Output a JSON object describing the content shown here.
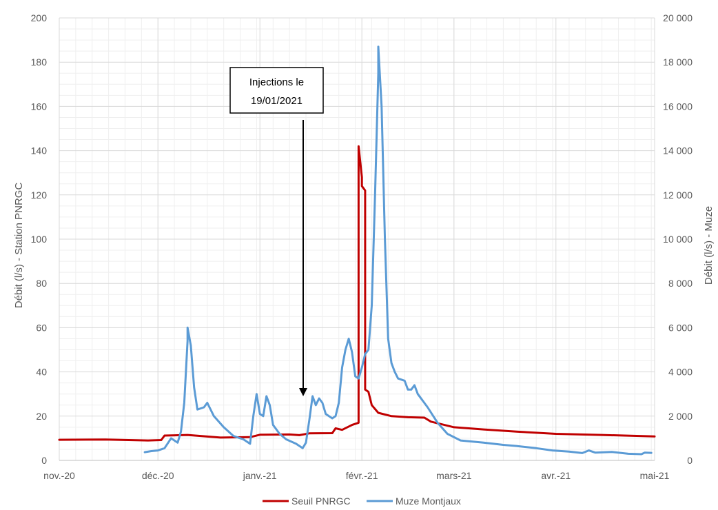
{
  "chart_data": {
    "type": "line",
    "x_ticks": [
      {
        "date": "2020-11-01",
        "label": "nov.-20"
      },
      {
        "date": "2020-12-01",
        "label": "déc.-20"
      },
      {
        "date": "2021-01-01",
        "label": "janv.-21"
      },
      {
        "date": "2021-02-01",
        "label": "févr.-21"
      },
      {
        "date": "2021-03-01",
        "label": "mars-21"
      },
      {
        "date": "2021-04-01",
        "label": "avr.-21"
      },
      {
        "date": "2021-05-01",
        "label": "mai-21"
      }
    ],
    "xlim": [
      "2020-11-01",
      "2021-05-01"
    ],
    "y_left": {
      "label": "Débit (l/s) - Station PNRGC",
      "ylim": [
        0,
        200
      ],
      "ticks": [
        "0",
        "20",
        "40",
        "60",
        "80",
        "100",
        "120",
        "140",
        "160",
        "180",
        "200"
      ]
    },
    "y_right": {
      "label": "Débit (l/s) - Muze",
      "ylim": [
        0,
        20000
      ],
      "ticks": [
        "0",
        "2 000",
        "4 000",
        "6 000",
        "8 000",
        "10 000",
        "12 000",
        "14 000",
        "16 000",
        "18 000",
        "20 000"
      ]
    },
    "grid": true,
    "legend_position": "bottom",
    "series": [
      {
        "name": "Seuil PNRGC",
        "axis": "left",
        "color": "#c00000",
        "points": [
          [
            "2020-11-01",
            9.3
          ],
          [
            "2020-11-15",
            9.4
          ],
          [
            "2020-11-28",
            9.0
          ],
          [
            "2020-12-02",
            9.2
          ],
          [
            "2020-12-03",
            11.2
          ],
          [
            "2020-12-10",
            11.5
          ],
          [
            "2020-12-20",
            10.3
          ],
          [
            "2020-12-29",
            10.5
          ],
          [
            "2021-01-01",
            11.6
          ],
          [
            "2021-01-10",
            11.7
          ],
          [
            "2021-01-13",
            11.4
          ],
          [
            "2021-01-16",
            12.2
          ],
          [
            "2021-01-23",
            12.3
          ],
          [
            "2021-01-24",
            14.5
          ],
          [
            "2021-01-26",
            13.8
          ],
          [
            "2021-01-29",
            16.0
          ],
          [
            "2021-01-31",
            17.0
          ],
          [
            "2021-01-31",
            142.0
          ],
          [
            "2021-02-01",
            128.0
          ],
          [
            "2021-02-01",
            124.0
          ],
          [
            "2021-02-02",
            122.0
          ],
          [
            "2021-02-02",
            32.0
          ],
          [
            "2021-02-03",
            31.0
          ],
          [
            "2021-02-04",
            25.0
          ],
          [
            "2021-02-06",
            21.5
          ],
          [
            "2021-02-10",
            20.0
          ],
          [
            "2021-02-15",
            19.5
          ],
          [
            "2021-02-20",
            19.3
          ],
          [
            "2021-02-22",
            17.5
          ],
          [
            "2021-03-01",
            15.0
          ],
          [
            "2021-03-10",
            14.0
          ],
          [
            "2021-03-20",
            13.0
          ],
          [
            "2021-04-01",
            12.0
          ],
          [
            "2021-04-15",
            11.5
          ],
          [
            "2021-05-01",
            10.8
          ]
        ]
      },
      {
        "name": "Muze Montjaux",
        "axis": "right",
        "color": "#5b9bd5",
        "points": [
          [
            "2020-11-27",
            370
          ],
          [
            "2020-11-29",
            420
          ],
          [
            "2020-12-01",
            450
          ],
          [
            "2020-12-03",
            550
          ],
          [
            "2020-12-05",
            1000
          ],
          [
            "2020-12-06",
            900
          ],
          [
            "2020-12-07",
            800
          ],
          [
            "2020-12-08",
            1300
          ],
          [
            "2020-12-09",
            2600
          ],
          [
            "2020-12-10",
            5400
          ],
          [
            "2020-12-10",
            6000
          ],
          [
            "2020-12-11",
            5200
          ],
          [
            "2020-12-12",
            3300
          ],
          [
            "2020-12-13",
            2300
          ],
          [
            "2020-12-15",
            2400
          ],
          [
            "2020-12-16",
            2600
          ],
          [
            "2020-12-18",
            2000
          ],
          [
            "2020-12-21",
            1500
          ],
          [
            "2020-12-24",
            1100
          ],
          [
            "2020-12-27",
            950
          ],
          [
            "2020-12-29",
            750
          ],
          [
            "2020-12-30",
            2000
          ],
          [
            "2020-12-31",
            3000
          ],
          [
            "2021-01-01",
            2100
          ],
          [
            "2021-01-02",
            2000
          ],
          [
            "2021-01-03",
            2900
          ],
          [
            "2021-01-04",
            2500
          ],
          [
            "2021-01-05",
            1600
          ],
          [
            "2021-01-07",
            1200
          ],
          [
            "2021-01-09",
            950
          ],
          [
            "2021-01-12",
            750
          ],
          [
            "2021-01-14",
            550
          ],
          [
            "2021-01-15",
            800
          ],
          [
            "2021-01-16",
            1800
          ],
          [
            "2021-01-17",
            2900
          ],
          [
            "2021-01-18",
            2500
          ],
          [
            "2021-01-19",
            2800
          ],
          [
            "2021-01-20",
            2600
          ],
          [
            "2021-01-21",
            2100
          ],
          [
            "2021-01-23",
            1900
          ],
          [
            "2021-01-24",
            2000
          ],
          [
            "2021-01-25",
            2600
          ],
          [
            "2021-01-26",
            4200
          ],
          [
            "2021-01-27",
            5000
          ],
          [
            "2021-01-28",
            5500
          ],
          [
            "2021-01-29",
            4900
          ],
          [
            "2021-01-30",
            3800
          ],
          [
            "2021-01-31",
            3700
          ],
          [
            "2021-02-01",
            4200
          ],
          [
            "2021-02-02",
            4800
          ],
          [
            "2021-02-03",
            5000
          ],
          [
            "2021-02-04",
            7000
          ],
          [
            "2021-02-05",
            12000
          ],
          [
            "2021-02-06",
            17500
          ],
          [
            "2021-02-06",
            18700
          ],
          [
            "2021-02-07",
            16000
          ],
          [
            "2021-02-08",
            10000
          ],
          [
            "2021-02-09",
            5500
          ],
          [
            "2021-02-10",
            4400
          ],
          [
            "2021-02-11",
            4000
          ],
          [
            "2021-02-12",
            3700
          ],
          [
            "2021-02-14",
            3600
          ],
          [
            "2021-02-15",
            3200
          ],
          [
            "2021-02-16",
            3200
          ],
          [
            "2021-02-17",
            3400
          ],
          [
            "2021-02-18",
            3000
          ],
          [
            "2021-02-21",
            2400
          ],
          [
            "2021-02-24",
            1700
          ],
          [
            "2021-02-27",
            1200
          ],
          [
            "2021-03-03",
            900
          ],
          [
            "2021-03-10",
            800
          ],
          [
            "2021-03-16",
            700
          ],
          [
            "2021-03-20",
            650
          ],
          [
            "2021-03-26",
            550
          ],
          [
            "2021-03-31",
            450
          ],
          [
            "2021-04-05",
            400
          ],
          [
            "2021-04-09",
            330
          ],
          [
            "2021-04-11",
            450
          ],
          [
            "2021-04-13",
            350
          ],
          [
            "2021-04-18",
            380
          ],
          [
            "2021-04-23",
            300
          ],
          [
            "2021-04-27",
            280
          ],
          [
            "2021-04-28",
            350
          ],
          [
            "2021-04-30",
            340
          ]
        ]
      }
    ],
    "annotations": [
      {
        "lines": [
          "Injections le",
          "19/01/2021"
        ],
        "points_to": "2021-01-19"
      }
    ]
  }
}
